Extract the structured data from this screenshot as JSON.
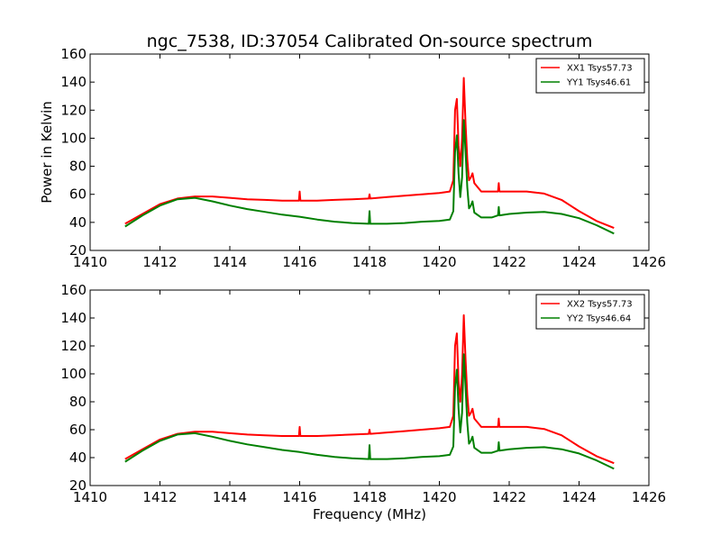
{
  "figure_title": "ngc_7538, ID:37054 Calibrated On-source spectrum",
  "ylabel": "Power in Kelvin",
  "xlabel": "Frequency (MHz)",
  "chart_data": [
    {
      "type": "line",
      "title": "ngc_7538, ID:37054 Calibrated On-source spectrum",
      "ylabel": "Power in Kelvin",
      "xlabel": "",
      "xlim": [
        1410,
        1426
      ],
      "ylim": [
        20,
        160
      ],
      "xticks": [
        1410,
        1412,
        1414,
        1416,
        1418,
        1420,
        1422,
        1424,
        1426
      ],
      "yticks": [
        20,
        40,
        60,
        80,
        100,
        120,
        140,
        160
      ],
      "grid": false,
      "legend_position": "top-right",
      "series": [
        {
          "name": "XX1 Tsys57.73",
          "color": "#ff0000",
          "x": [
            1411.0,
            1411.5,
            1412.0,
            1412.5,
            1413.0,
            1413.5,
            1414.0,
            1414.5,
            1415.0,
            1415.5,
            1415.98,
            1416.0,
            1416.02,
            1416.5,
            1417.0,
            1417.5,
            1417.98,
            1418.0,
            1418.02,
            1418.5,
            1419.0,
            1419.5,
            1420.0,
            1420.3,
            1420.4,
            1420.45,
            1420.5,
            1420.55,
            1420.6,
            1420.65,
            1420.7,
            1420.75,
            1420.8,
            1420.85,
            1420.9,
            1420.95,
            1421.0,
            1421.2,
            1421.5,
            1421.68,
            1421.7,
            1421.72,
            1422.0,
            1422.5,
            1423.0,
            1423.5,
            1424.0,
            1424.5,
            1425.0
          ],
          "y": [
            39,
            46,
            53,
            57,
            58.5,
            58.5,
            57.5,
            56.5,
            56,
            55.5,
            55.5,
            62,
            55.5,
            55.5,
            56,
            56.5,
            57,
            60,
            57,
            58,
            59,
            60,
            61,
            62,
            70,
            120,
            128,
            95,
            80,
            100,
            143,
            110,
            85,
            70,
            72,
            75,
            68,
            62,
            62,
            62,
            68,
            62,
            62,
            62,
            60.5,
            56,
            48,
            41,
            36
          ]
        },
        {
          "name": "YY1 Tsys46.61",
          "color": "#008000",
          "x": [
            1411.0,
            1411.5,
            1412.0,
            1412.5,
            1413.0,
            1413.5,
            1414.0,
            1414.5,
            1415.0,
            1415.5,
            1416.0,
            1416.5,
            1417.0,
            1417.5,
            1417.98,
            1418.0,
            1418.02,
            1418.5,
            1419.0,
            1419.5,
            1420.0,
            1420.3,
            1420.4,
            1420.45,
            1420.5,
            1420.55,
            1420.6,
            1420.65,
            1420.7,
            1420.75,
            1420.8,
            1420.85,
            1420.9,
            1420.95,
            1421.0,
            1421.2,
            1421.5,
            1421.68,
            1421.7,
            1421.72,
            1422.0,
            1422.5,
            1423.0,
            1423.5,
            1424.0,
            1424.5,
            1425.0
          ],
          "y": [
            37,
            45,
            52,
            56.5,
            57.5,
            55,
            52,
            49.5,
            47.5,
            45.5,
            44,
            42,
            40.5,
            39.5,
            39,
            48,
            39,
            39,
            39.5,
            40.5,
            41,
            42,
            48,
            90,
            102,
            75,
            58,
            72,
            113,
            90,
            65,
            50,
            52,
            55,
            47,
            43.5,
            43.5,
            45,
            51,
            45,
            46,
            47,
            47.5,
            46,
            43,
            38,
            32
          ]
        }
      ]
    },
    {
      "type": "line",
      "title": "",
      "ylabel": "Power in Kelvin",
      "xlabel": "Frequency (MHz)",
      "xlim": [
        1410,
        1426
      ],
      "ylim": [
        20,
        160
      ],
      "xticks": [
        1410,
        1412,
        1414,
        1416,
        1418,
        1420,
        1422,
        1424,
        1426
      ],
      "yticks": [
        20,
        40,
        60,
        80,
        100,
        120,
        140,
        160
      ],
      "grid": false,
      "legend_position": "top-right",
      "series": [
        {
          "name": "XX2 Tsys57.73",
          "color": "#ff0000",
          "x": [
            1411.0,
            1411.5,
            1412.0,
            1412.5,
            1413.0,
            1413.5,
            1414.0,
            1414.5,
            1415.0,
            1415.5,
            1415.98,
            1416.0,
            1416.02,
            1416.5,
            1417.0,
            1417.5,
            1417.98,
            1418.0,
            1418.02,
            1418.5,
            1419.0,
            1419.5,
            1420.0,
            1420.3,
            1420.4,
            1420.45,
            1420.5,
            1420.55,
            1420.6,
            1420.65,
            1420.7,
            1420.75,
            1420.8,
            1420.85,
            1420.9,
            1420.95,
            1421.0,
            1421.2,
            1421.5,
            1421.68,
            1421.7,
            1421.72,
            1422.0,
            1422.5,
            1423.0,
            1423.5,
            1424.0,
            1424.5,
            1425.0
          ],
          "y": [
            39,
            46,
            53,
            57,
            58.5,
            58.5,
            57.5,
            56.5,
            56,
            55.5,
            55.5,
            62,
            55.5,
            55.5,
            56,
            56.5,
            57,
            60,
            57,
            58,
            59,
            60,
            61,
            62,
            70,
            120,
            129,
            95,
            80,
            100,
            142,
            110,
            85,
            70,
            72,
            75,
            68,
            62,
            62,
            62,
            68,
            62,
            62,
            62,
            60.5,
            56,
            48,
            41,
            36
          ]
        },
        {
          "name": "YY2 Tsys46.64",
          "color": "#008000",
          "x": [
            1411.0,
            1411.5,
            1412.0,
            1412.5,
            1413.0,
            1413.5,
            1414.0,
            1414.5,
            1415.0,
            1415.5,
            1416.0,
            1416.5,
            1417.0,
            1417.5,
            1417.98,
            1418.0,
            1418.02,
            1418.5,
            1419.0,
            1419.5,
            1420.0,
            1420.3,
            1420.4,
            1420.45,
            1420.5,
            1420.55,
            1420.6,
            1420.65,
            1420.7,
            1420.75,
            1420.8,
            1420.85,
            1420.9,
            1420.95,
            1421.0,
            1421.2,
            1421.5,
            1421.68,
            1421.7,
            1421.72,
            1422.0,
            1422.5,
            1423.0,
            1423.5,
            1424.0,
            1424.5,
            1425.0
          ],
          "y": [
            37,
            45,
            52,
            56.5,
            57.5,
            55,
            52,
            49.5,
            47.5,
            45.5,
            44,
            42,
            40.5,
            39.5,
            39,
            49,
            39,
            39,
            39.5,
            40.5,
            41,
            42,
            48,
            90,
            103,
            75,
            58,
            72,
            114,
            90,
            65,
            50,
            52,
            55,
            47,
            43.5,
            43.5,
            45,
            51,
            45,
            46,
            47,
            47.5,
            46,
            43,
            38,
            32
          ]
        }
      ]
    }
  ]
}
